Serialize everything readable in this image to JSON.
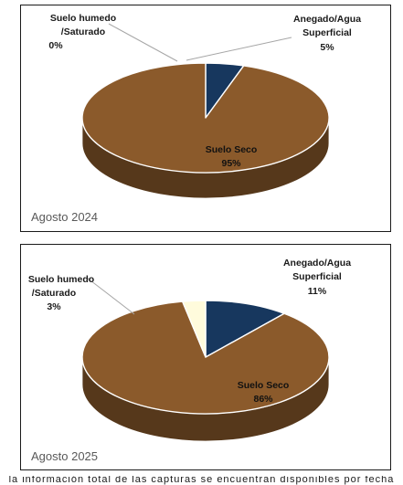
{
  "chart_data": [
    {
      "type": "pie",
      "period_label": "Agosto 2024",
      "colors": {
        "Anegado/Agua Superficial": "#17375e",
        "Suelo humedo /Saturado": "#fffbdc",
        "Suelo Seco": "#8b5a2b"
      },
      "slices": [
        {
          "name_lines": [
            "Anegado/Agua",
            "Superficial"
          ],
          "value": 5,
          "percent_text": "5%"
        },
        {
          "name_lines": [
            "Suelo Seco"
          ],
          "value": 95,
          "percent_text": "95%"
        },
        {
          "name_lines": [
            "Suelo humedo",
            "/Saturado"
          ],
          "value": 0,
          "percent_text": "0%"
        }
      ]
    },
    {
      "type": "pie",
      "period_label": "Agosto 2025",
      "colors": {
        "Anegado/Agua Superficial": "#17375e",
        "Suelo humedo /Saturado": "#fffbdc",
        "Suelo Seco": "#8b5a2b"
      },
      "slices": [
        {
          "name_lines": [
            "Anegado/Agua",
            "Superficial"
          ],
          "value": 11,
          "percent_text": "11%"
        },
        {
          "name_lines": [
            "Suelo Seco"
          ],
          "value": 86,
          "percent_text": "86%"
        },
        {
          "name_lines": [
            "Suelo humedo",
            "/Saturado"
          ],
          "value": 3,
          "percent_text": "3%"
        }
      ]
    }
  ],
  "footer_text": "la información total de las capturas se encuentran disponibles por fecha"
}
